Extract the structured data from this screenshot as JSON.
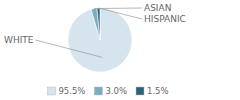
{
  "chart_data": {
    "type": "pie",
    "categories": [
      "WHITE",
      "ASIAN",
      "HISPANIC"
    ],
    "values": [
      95.5,
      3.0,
      1.5
    ],
    "value_labels": [
      "95.5%",
      "3.0%",
      "1.5%"
    ],
    "colors": [
      "#d6e4ee",
      "#7aaec0",
      "#2e607a"
    ],
    "legend": "bottom"
  }
}
